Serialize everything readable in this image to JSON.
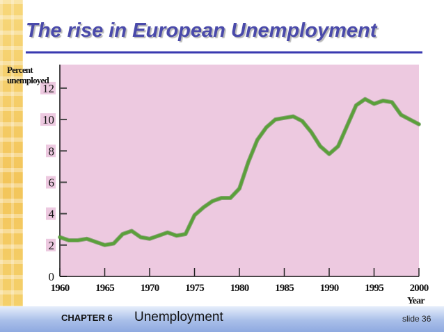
{
  "slide": {
    "title": "The rise in European Unemployment",
    "footer_chapter": "CHAPTER 6",
    "footer_topic": "Unemployment",
    "slide_number": "slide 36"
  },
  "colors": {
    "title": "#4a4aaa",
    "rule": "#3a3ab0",
    "plot_background": "#edc9e0",
    "line": "#5aa03a",
    "axis": "#111111"
  },
  "chart_data": {
    "type": "line",
    "title": "",
    "ylabel": "Percent unemployed",
    "xlabel": "Year",
    "xlim": [
      1960,
      2000
    ],
    "ylim": [
      0,
      13.5
    ],
    "x_ticks": [
      "1960",
      "1965",
      "1970",
      "1975",
      "1980",
      "1985",
      "1990",
      "1995",
      "2000"
    ],
    "y_ticks": [
      "0",
      "2",
      "4",
      "6",
      "8",
      "10",
      "12"
    ],
    "grid": false,
    "x": [
      1960,
      1961,
      1962,
      1963,
      1964,
      1965,
      1966,
      1967,
      1968,
      1969,
      1970,
      1971,
      1972,
      1973,
      1974,
      1975,
      1976,
      1977,
      1978,
      1979,
      1980,
      1981,
      1982,
      1983,
      1984,
      1985,
      1986,
      1987,
      1988,
      1989,
      1990,
      1991,
      1992,
      1993,
      1994,
      1995,
      1996,
      1997,
      1998,
      1999,
      2000
    ],
    "series": [
      {
        "values": [
          2.5,
          2.3,
          2.3,
          2.4,
          2.2,
          2.0,
          2.1,
          2.7,
          2.9,
          2.5,
          2.4,
          2.6,
          2.8,
          2.6,
          2.7,
          3.9,
          4.4,
          4.8,
          5.0,
          5.0,
          5.6,
          7.3,
          8.7,
          9.5,
          10.0,
          10.1,
          10.2,
          9.9,
          9.2,
          8.3,
          7.8,
          8.3,
          9.6,
          10.9,
          11.3,
          11.0,
          11.2,
          11.1,
          10.3,
          10.0,
          9.7
        ]
      }
    ]
  }
}
